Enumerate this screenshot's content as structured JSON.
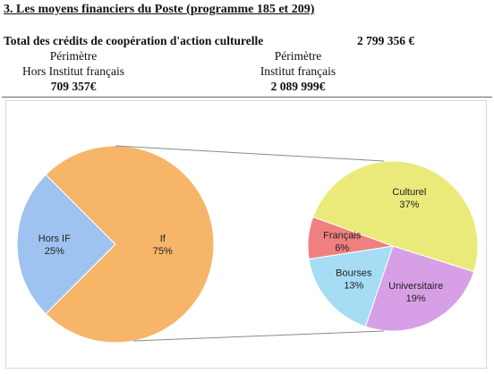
{
  "header": {
    "section_title": "3. Les moyens financiers du Poste (programme 185 et 209)"
  },
  "totals": {
    "label": "Total des crédits de coopération d'action culturelle",
    "amount": "2 799 356 €"
  },
  "perimeters": [
    {
      "title": "Périmètre",
      "subtitle": "Hors Institut français",
      "amount": "709 357€"
    },
    {
      "title": "Périmètre",
      "subtitle": "Institut français",
      "amount": "2 089 999€"
    }
  ],
  "chart_data": {
    "type": "pie",
    "title": "",
    "charts": [
      {
        "type": "pie",
        "slices": [
          {
            "label": "Hors IF",
            "percent_label": "25%",
            "value": 25,
            "color": "#9fc3f0"
          },
          {
            "label": "If",
            "percent_label": "75%",
            "value": 75,
            "color": "#f7b56a"
          }
        ]
      },
      {
        "type": "pie",
        "slices": [
          {
            "label": "Culturel",
            "percent_label": "37%",
            "value": 37,
            "color": "#eaea7a"
          },
          {
            "label": "Universitaire",
            "percent_label": "19%",
            "value": 19,
            "color": "#d7a0e6"
          },
          {
            "label": "Bourses",
            "percent_label": "13%",
            "value": 13,
            "color": "#a6dcf4"
          },
          {
            "label": "Français",
            "percent_label": "6%",
            "value": 6,
            "color": "#f08080"
          }
        ]
      }
    ]
  }
}
